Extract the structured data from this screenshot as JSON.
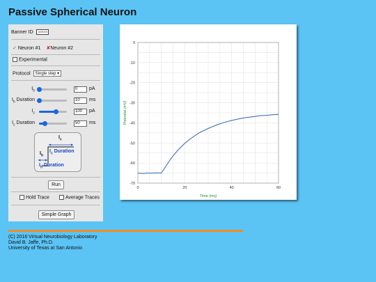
{
  "page": {
    "title": "Passive Spherical Neuron"
  },
  "panel": {
    "banner_label": "Banner ID",
    "banner_box_text": "XXXXX",
    "neuron1_label": "Neuron #1",
    "neuron2_label": "Neuron #2",
    "experimental_label": "Experimental",
    "protocol_label": "Protocol",
    "protocol_value": "Single step",
    "sliders": [
      {
        "label_main": "I",
        "label_sub": "h",
        "label_rest": "",
        "value": "0",
        "unit": "pA",
        "fraction": 0.0
      },
      {
        "label_main": "I",
        "label_sub": "h",
        "label_rest": " Duration",
        "value": "10",
        "unit": "ms",
        "fraction": 0.0
      },
      {
        "label_main": "I",
        "label_sub": "c",
        "label_rest": "",
        "value": "100",
        "unit": "pA",
        "fraction": 0.6
      },
      {
        "label_main": "I",
        "label_sub": "c",
        "label_rest": " Duration",
        "value": "50",
        "unit": "ms",
        "fraction": 0.2
      }
    ],
    "diagram": {
      "ic_label": "I",
      "ic_sub": "c",
      "ih_label": "I",
      "ih_sub": "h",
      "ic_duration": "Duration",
      "ih_duration": "Duration"
    },
    "run_label": "Run",
    "hold_trace_label": "Hold Trace",
    "average_traces_label": "Average Traces",
    "simple_graph_label": "Simple Graph"
  },
  "chart_data": {
    "type": "line",
    "title": "",
    "xlabel": "Time (ms)",
    "ylabel": "Potential (mV)",
    "xlim": [
      0,
      60
    ],
    "ylim": [
      -70,
      0
    ],
    "xticks": [
      0,
      20,
      40,
      60
    ],
    "yticks": [
      0,
      -10,
      -20,
      -30,
      -40,
      -50,
      -60,
      -70
    ],
    "grid": true,
    "series": [
      {
        "color": "#2a62b8",
        "x": [
          0,
          2,
          4,
          6,
          8,
          10,
          12,
          14,
          16,
          18,
          20,
          22,
          24,
          26,
          28,
          30,
          32,
          34,
          36,
          38,
          40,
          42,
          44,
          46,
          48,
          50,
          52,
          54,
          56,
          58,
          60
        ],
        "y": [
          -65,
          -65.2,
          -65,
          -65,
          -64.9,
          -65,
          -61.5,
          -58,
          -55,
          -52.5,
          -50.2,
          -48.3,
          -46.6,
          -45.1,
          -43.9,
          -42.8,
          -41.8,
          -40.9,
          -40.1,
          -39.4,
          -38.8,
          -38.3,
          -37.8,
          -37.4,
          -37.1,
          -36.8,
          -36.5,
          -36.3,
          -36.1,
          -35.9,
          -35.8
        ]
      }
    ]
  },
  "footer": {
    "line1": "(C) 2016 Virtual Neurobiology Laboratory",
    "line2": "David B. Jaffe, Ph.D.",
    "line3": "University of Texas at San Antonio"
  },
  "colors": {
    "background": "#5bc4f5",
    "panel": "#e6e6e6",
    "accent": "#1a66e0",
    "divider": "#f08a24",
    "trace": "#2a62b8"
  }
}
